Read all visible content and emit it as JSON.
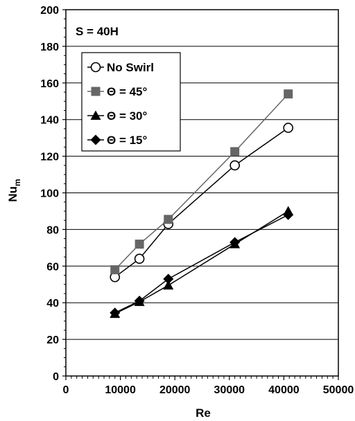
{
  "chart_data": {
    "type": "line",
    "xlabel": "Re",
    "ylabel": "Nu",
    "ylabel_sub": "m",
    "annotation": "S = 40H",
    "xlim": [
      0,
      50000
    ],
    "ylim": [
      0,
      200
    ],
    "x_ticks": [
      0,
      10000,
      20000,
      30000,
      40000,
      50000
    ],
    "x_tick_labels": [
      "0",
      "10000",
      "20000",
      "30000",
      "40000",
      "50000"
    ],
    "y_ticks": [
      0,
      20,
      40,
      60,
      80,
      100,
      120,
      140,
      160,
      180,
      200
    ],
    "y_tick_labels": [
      "0",
      "20",
      "40",
      "60",
      "80",
      "100",
      "120",
      "140",
      "160",
      "180",
      "200"
    ],
    "grid": "horizontal",
    "legend_position": "top-left",
    "series": [
      {
        "name": "No Swirl",
        "marker": "open-circle",
        "color": "#000000",
        "x": [
          9000,
          13500,
          18800,
          31000,
          40800
        ],
        "values": [
          54,
          64,
          83,
          115,
          135.5
        ]
      },
      {
        "name": "Θ = 45°",
        "marker": "square",
        "color": "#666666",
        "x": [
          9000,
          13500,
          18800,
          31000,
          40800
        ],
        "values": [
          58,
          72,
          85.5,
          122.5,
          154
        ]
      },
      {
        "name": "Θ = 30°",
        "marker": "triangle",
        "color": "#000000",
        "x": [
          9000,
          13500,
          18800,
          31000,
          40800
        ],
        "values": [
          34,
          40.5,
          49.5,
          72,
          90
        ]
      },
      {
        "name": "Θ = 15°",
        "marker": "diamond",
        "color": "#000000",
        "x": [
          9000,
          13500,
          18800,
          31000,
          40800
        ],
        "values": [
          34.5,
          41,
          53,
          73,
          88
        ]
      }
    ]
  }
}
